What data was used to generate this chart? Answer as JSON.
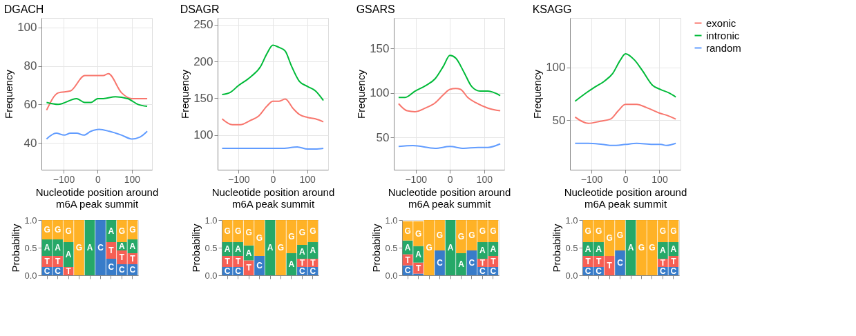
{
  "chart_data": [
    {
      "type": "line",
      "title": "DGACH",
      "xlabel": "Nucleotide position around\nm6A peak summit",
      "ylabel": "Frequency",
      "xlim": [
        -165,
        159
      ],
      "xticks": [
        -100,
        0,
        100
      ],
      "ylim": [
        26,
        105
      ],
      "yticks": [
        40,
        60,
        80,
        100
      ],
      "grid": true,
      "legend": false,
      "series": [
        {
          "color": "#f8766d",
          "x": [
            -150,
            -116,
            -80,
            -38,
            0,
            16,
            31,
            70,
            100,
            130,
            145
          ],
          "values": [
            57,
            66,
            67,
            75,
            75,
            75,
            76,
            66,
            63,
            63,
            63
          ]
        },
        {
          "color": "#00ba38",
          "x": [
            -150,
            -116,
            -62,
            -38,
            -20,
            0,
            16,
            52,
            88,
            118,
            145
          ],
          "values": [
            61,
            60,
            63,
            61,
            61,
            63,
            63,
            64,
            63,
            60,
            59
          ]
        },
        {
          "color": "#619cff",
          "x": [
            -150,
            -122,
            -98,
            -80,
            -62,
            -41,
            -20,
            4,
            34,
            70,
            100,
            124,
            145
          ],
          "values": [
            42,
            45,
            44,
            45,
            45,
            44,
            46,
            47,
            46,
            44,
            42,
            43,
            46
          ]
        }
      ]
    },
    {
      "type": "line",
      "title": "DSAGR",
      "xlabel": "Nucleotide position around\nm6A peak summit",
      "ylabel": "Frequency",
      "xlim": [
        -161,
        161
      ],
      "xticks": [
        -100,
        0,
        100
      ],
      "ylim": [
        53,
        259
      ],
      "yticks": [
        100,
        150,
        200,
        250
      ],
      "grid": true,
      "legend": false,
      "series": [
        {
          "color": "#f8766d",
          "x": [
            -148,
            -118,
            -95,
            -65,
            -41,
            -18,
            0,
            18,
            36,
            59,
            77,
            101,
            124,
            147
          ],
          "values": [
            122,
            114,
            114,
            120,
            126,
            139,
            146,
            146,
            149,
            136,
            128,
            124,
            122,
            118
          ]
        },
        {
          "color": "#00ba38",
          "x": [
            -148,
            -124,
            -101,
            -65,
            -36,
            -18,
            0,
            18,
            36,
            53,
            77,
            101,
            124,
            147
          ],
          "values": [
            155,
            158,
            167,
            179,
            193,
            210,
            222,
            219,
            214,
            195,
            173,
            166,
            160,
            147
          ]
        },
        {
          "color": "#619cff",
          "x": [
            -148,
            -95,
            -53,
            0,
            30,
            71,
            101,
            124,
            147
          ],
          "values": [
            82,
            82,
            82,
            82,
            82,
            84,
            81,
            81,
            82
          ]
        }
      ]
    },
    {
      "type": "line",
      "title": "GSARS",
      "xlabel": "Nucleotide position around\nm6A peak summit",
      "ylabel": "Frequency",
      "xlim": [
        -164,
        159
      ],
      "xticks": [
        -100,
        0,
        100
      ],
      "ylim": [
        14,
        184
      ],
      "yticks": [
        50,
        100,
        150
      ],
      "grid": true,
      "legend": false,
      "series": [
        {
          "color": "#f8766d",
          "x": [
            -150,
            -125,
            -102,
            -72,
            -43,
            -19,
            0,
            17,
            31,
            52,
            76,
            111,
            147
          ],
          "values": [
            88,
            80,
            79,
            83,
            89,
            98,
            104,
            105,
            104,
            95,
            89,
            83,
            80
          ]
        },
        {
          "color": "#00ba38",
          "x": [
            -150,
            -131,
            -102,
            -72,
            -43,
            -19,
            0,
            17,
            40,
            64,
            88,
            111,
            147
          ],
          "values": [
            95,
            95,
            102,
            108,
            116,
            130,
            142,
            139,
            124,
            107,
            102,
            102,
            97
          ]
        },
        {
          "color": "#619cff",
          "x": [
            -150,
            -108,
            -43,
            0,
            40,
            82,
            111,
            147
          ],
          "values": [
            40,
            41,
            38,
            40,
            38,
            39,
            39,
            43
          ]
        }
      ]
    },
    {
      "type": "line",
      "title": "KSAGG",
      "xlabel": "Nucleotide position around\nm6A peak summit",
      "ylabel": "Frequency",
      "xlim": [
        -163,
        162
      ],
      "xticks": [
        -100,
        0,
        100
      ],
      "ylim": [
        3,
        147
      ],
      "yticks": [
        50,
        100
      ],
      "grid": true,
      "legend": "top right",
      "series": [
        {
          "name": "exonic",
          "color": "#f8766d",
          "x": [
            -148,
            -109,
            -74,
            -44,
            -21,
            0,
            33,
            62,
            98,
            127,
            148
          ],
          "values": [
            53,
            47,
            49,
            51,
            59,
            65,
            65,
            62,
            57,
            54,
            51
          ]
        },
        {
          "name": "intronic",
          "color": "#00ba38",
          "x": [
            -148,
            -115,
            -92,
            -62,
            -38,
            -15,
            0,
            27,
            50,
            80,
            104,
            127,
            148
          ],
          "values": [
            68,
            76,
            81,
            87,
            94,
            107,
            113,
            107,
            97,
            83,
            79,
            76,
            72
          ]
        },
        {
          "name": "random",
          "color": "#619cff",
          "x": [
            -148,
            -109,
            -68,
            -38,
            0,
            33,
            80,
            104,
            121,
            148
          ],
          "values": [
            28,
            28,
            27,
            26,
            27,
            28,
            27,
            27,
            26,
            28
          ]
        }
      ]
    },
    {
      "type": "bar",
      "stacked": true,
      "ylabel": "Probability",
      "categories": [
        null,
        null,
        null,
        null,
        null,
        null,
        null,
        null,
        null
      ],
      "ylim": [
        0,
        1
      ],
      "yticks": [
        {
          "value": 0,
          "label": "0.0"
        },
        {
          "value": 0.5,
          "label": "0.5"
        },
        {
          "value": 1,
          "label": "1.0"
        }
      ],
      "tick_labels": "y",
      "series": [
        {
          "name": "C",
          "color": "#1565c0",
          "values": [
            0.15,
            0.15,
            0,
            0,
            0,
            1.0,
            0.3,
            0.2,
            0.2
          ]
        },
        {
          "name": "T",
          "color": "#f44336",
          "values": [
            0.2,
            0.2,
            0.15,
            0,
            0,
            0,
            0.3,
            0.25,
            0.2
          ]
        },
        {
          "name": "A",
          "color": "#00994d",
          "values": [
            0.3,
            0.3,
            0.45,
            0,
            1.0,
            0,
            0.4,
            0.15,
            0.25
          ]
        },
        {
          "name": "G",
          "color": "#ffa500",
          "values": [
            0.35,
            0.35,
            0.4,
            1.0,
            0,
            0,
            0,
            0.4,
            0.35
          ]
        }
      ]
    },
    {
      "type": "bar",
      "stacked": true,
      "ylabel": "Probability",
      "categories": [
        null,
        null,
        null,
        null,
        null,
        null,
        null,
        null,
        null
      ],
      "ylim": [
        0,
        1
      ],
      "yticks": [
        {
          "value": 0,
          "label": "0.0"
        },
        {
          "value": 0.5,
          "label": "0.5"
        },
        {
          "value": 1,
          "label": "1.0"
        }
      ],
      "tick_labels": "y",
      "series": [
        {
          "name": "C",
          "color": "#1565c0",
          "values": [
            0.15,
            0.15,
            0,
            0.35,
            0,
            0,
            0,
            0.15,
            0.15
          ]
        },
        {
          "name": "T",
          "color": "#f44336",
          "values": [
            0.2,
            0.2,
            0.27,
            0,
            0,
            0,
            0,
            0.15,
            0.15
          ]
        },
        {
          "name": "A",
          "color": "#00994d",
          "values": [
            0.25,
            0.25,
            0.27,
            0,
            1.0,
            0,
            0.4,
            0.25,
            0.3
          ]
        },
        {
          "name": "G",
          "color": "#ffa500",
          "values": [
            0.4,
            0.4,
            0.46,
            0.65,
            0,
            1.0,
            0.6,
            0.45,
            0.4
          ]
        }
      ]
    },
    {
      "type": "bar",
      "stacked": true,
      "ylabel": "Probability",
      "categories": [
        null,
        null,
        null,
        null,
        null,
        null,
        null,
        null,
        null
      ],
      "ylim": [
        0,
        1
      ],
      "yticks": [
        {
          "value": 0,
          "label": "0.0"
        },
        {
          "value": 0.5,
          "label": "0.5"
        },
        {
          "value": 1,
          "label": "1.0"
        }
      ],
      "tick_labels": "y",
      "series": [
        {
          "name": "C",
          "color": "#1565c0",
          "values": [
            0.18,
            0.03,
            0,
            0.45,
            0,
            0,
            0.45,
            0.15,
            0.15
          ]
        },
        {
          "name": "T",
          "color": "#f44336",
          "values": [
            0.2,
            0.2,
            0,
            0,
            0,
            0,
            0,
            0.15,
            0.2
          ]
        },
        {
          "name": "A",
          "color": "#00994d",
          "values": [
            0.25,
            0.3,
            0,
            0,
            1.0,
            0.4,
            0,
            0.3,
            0.25
          ]
        },
        {
          "name": "G",
          "color": "#ffa500",
          "values": [
            0.35,
            0.45,
            1.0,
            0.55,
            0,
            0.6,
            0.55,
            0.4,
            0.4
          ]
        }
      ]
    },
    {
      "type": "bar",
      "stacked": true,
      "ylabel": "Probability",
      "categories": [
        null,
        null,
        null,
        null,
        null,
        null,
        null,
        null,
        null
      ],
      "ylim": [
        0,
        1
      ],
      "yticks": [
        {
          "value": 0,
          "label": "0.0"
        },
        {
          "value": 0.5,
          "label": "0.5"
        },
        {
          "value": 1,
          "label": "1.0"
        }
      ],
      "tick_labels": "y",
      "series": [
        {
          "name": "C",
          "color": "#1565c0",
          "values": [
            0.15,
            0.15,
            0,
            0.45,
            0,
            0,
            0,
            0.15,
            0.15
          ]
        },
        {
          "name": "T",
          "color": "#f44336",
          "values": [
            0.2,
            0.2,
            0.35,
            0,
            0,
            0,
            0,
            0.15,
            0.2
          ]
        },
        {
          "name": "A",
          "color": "#00994d",
          "values": [
            0.25,
            0.25,
            0,
            0,
            1.0,
            0,
            0,
            0.3,
            0.25
          ]
        },
        {
          "name": "G",
          "color": "#ffa500",
          "values": [
            0.4,
            0.4,
            0.65,
            0.55,
            0,
            1.0,
            1.0,
            0.4,
            0.4
          ]
        }
      ]
    }
  ]
}
